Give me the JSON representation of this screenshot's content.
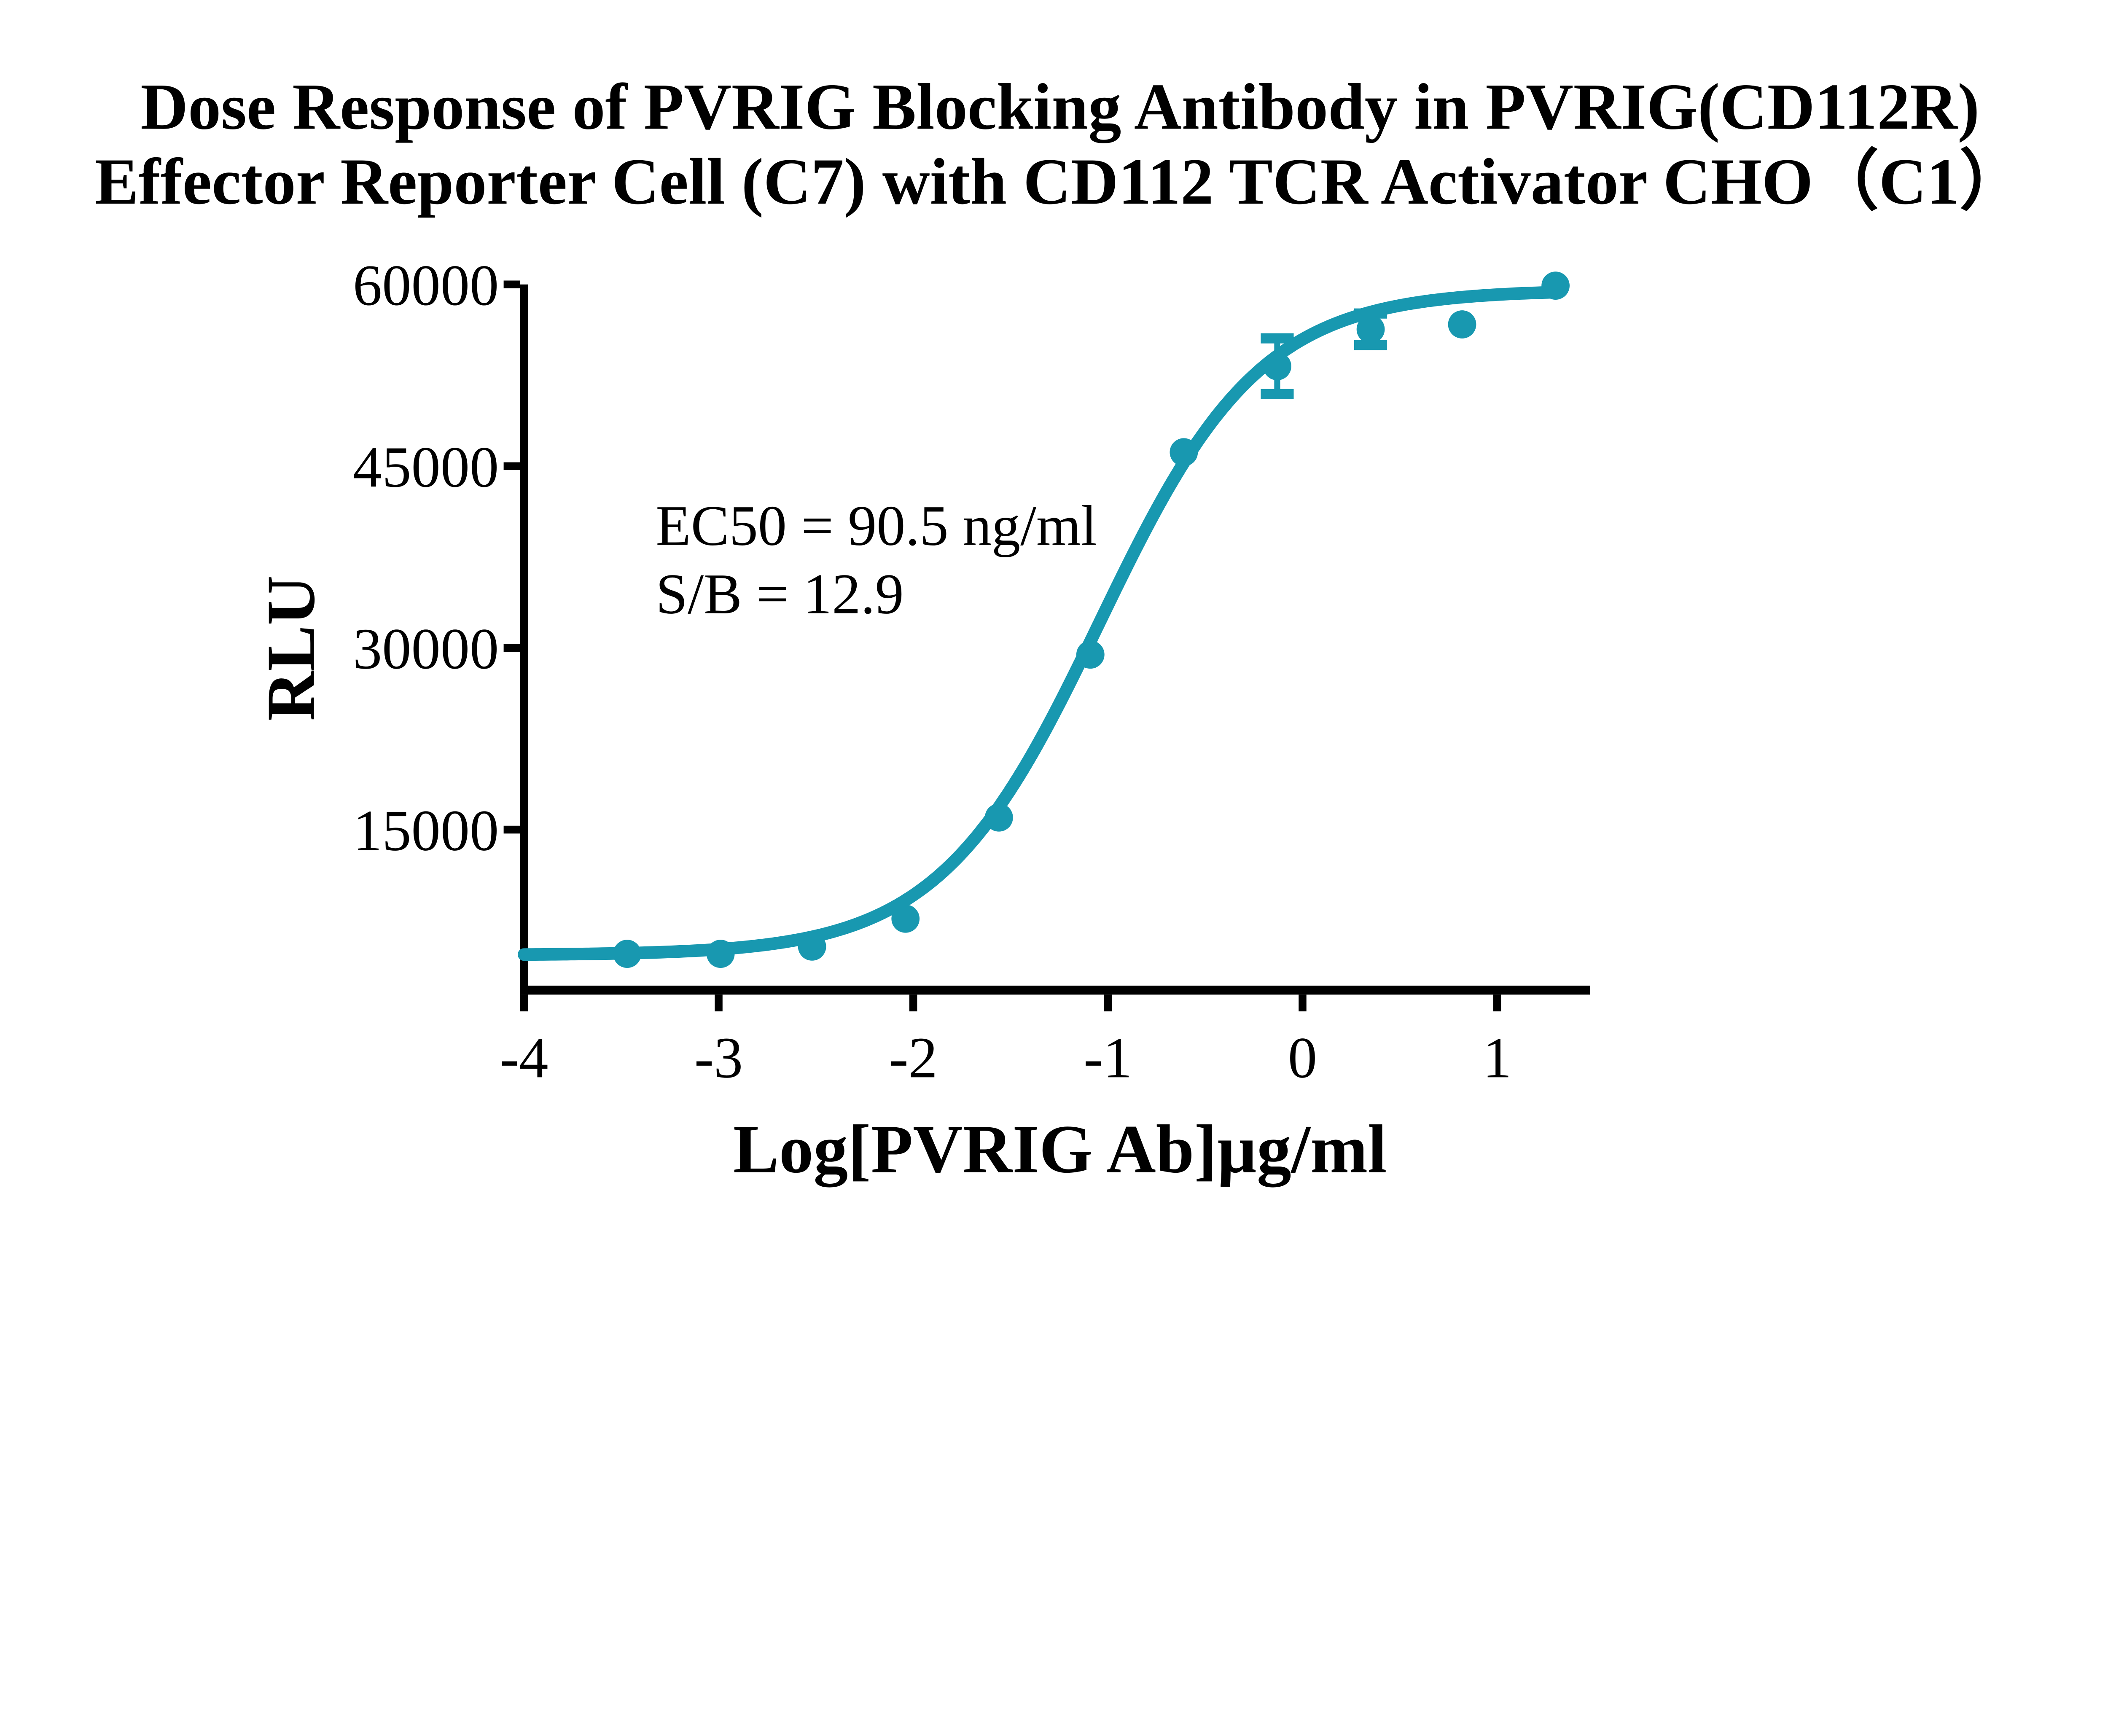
{
  "title": {
    "line1": "Dose Response of PVRIG Blocking Antibody in PVRIG(CD112R)",
    "line2": "Effector Reporter Cell (C7) with CD112 TCR Activator CHO（C1）"
  },
  "annotation": {
    "line1": "EC50 = 90.5 ng/ml",
    "line2": "S/B = 12.9"
  },
  "axes": {
    "y": {
      "label": "RLU",
      "tick_values": [
        15000,
        30000,
        45000,
        60000
      ],
      "tick_labels": [
        "15000",
        "30000",
        "45000",
        "60000"
      ]
    },
    "x": {
      "label": "Log[PVRIG Ab]µg/ml",
      "tick_values": [
        -4,
        -3,
        -2,
        -1,
        0,
        1
      ],
      "tick_labels": [
        "-4",
        "-3",
        "-2",
        "-1",
        "0",
        "1"
      ]
    }
  },
  "chart_data": {
    "type": "scatter",
    "title": "Dose Response of PVRIG Blocking Antibody in PVRIG(CD112R) Effector Reporter Cell (C7) with CD112 TCR Activator CHO（C1）",
    "xlabel": "Log[PVRIG Ab]µg/ml",
    "ylabel": "RLU",
    "xlim": [
      -4,
      1.48
    ],
    "ylim": [
      0,
      60000
    ],
    "grid": false,
    "legend": "none",
    "series": [
      {
        "name": "PVRIG blocking antibody",
        "x": [
          -3.47,
          -2.99,
          -2.52,
          -2.04,
          -1.56,
          -1.09,
          -0.61,
          -0.13,
          0.35,
          0.82,
          1.3
        ],
        "y": [
          4750,
          4750,
          5350,
          7650,
          16000,
          29450,
          46150,
          53250,
          56300,
          56700,
          59900
        ],
        "y_err": [
          null,
          null,
          null,
          null,
          null,
          null,
          null,
          2300,
          1300,
          null,
          null
        ]
      }
    ],
    "fit_curve": {
      "model": "four-parameter logistic",
      "bottom": 4650,
      "top": 59550,
      "log_ec50": -1.043,
      "hill": 1.05,
      "x_start": -4.0,
      "x_end": 1.3
    },
    "ec50_ng_ml": 90.5,
    "signal_to_background": 12.9,
    "colors": {
      "series": "#1898B0",
      "axis": "#000000",
      "background": "#ffffff"
    }
  }
}
